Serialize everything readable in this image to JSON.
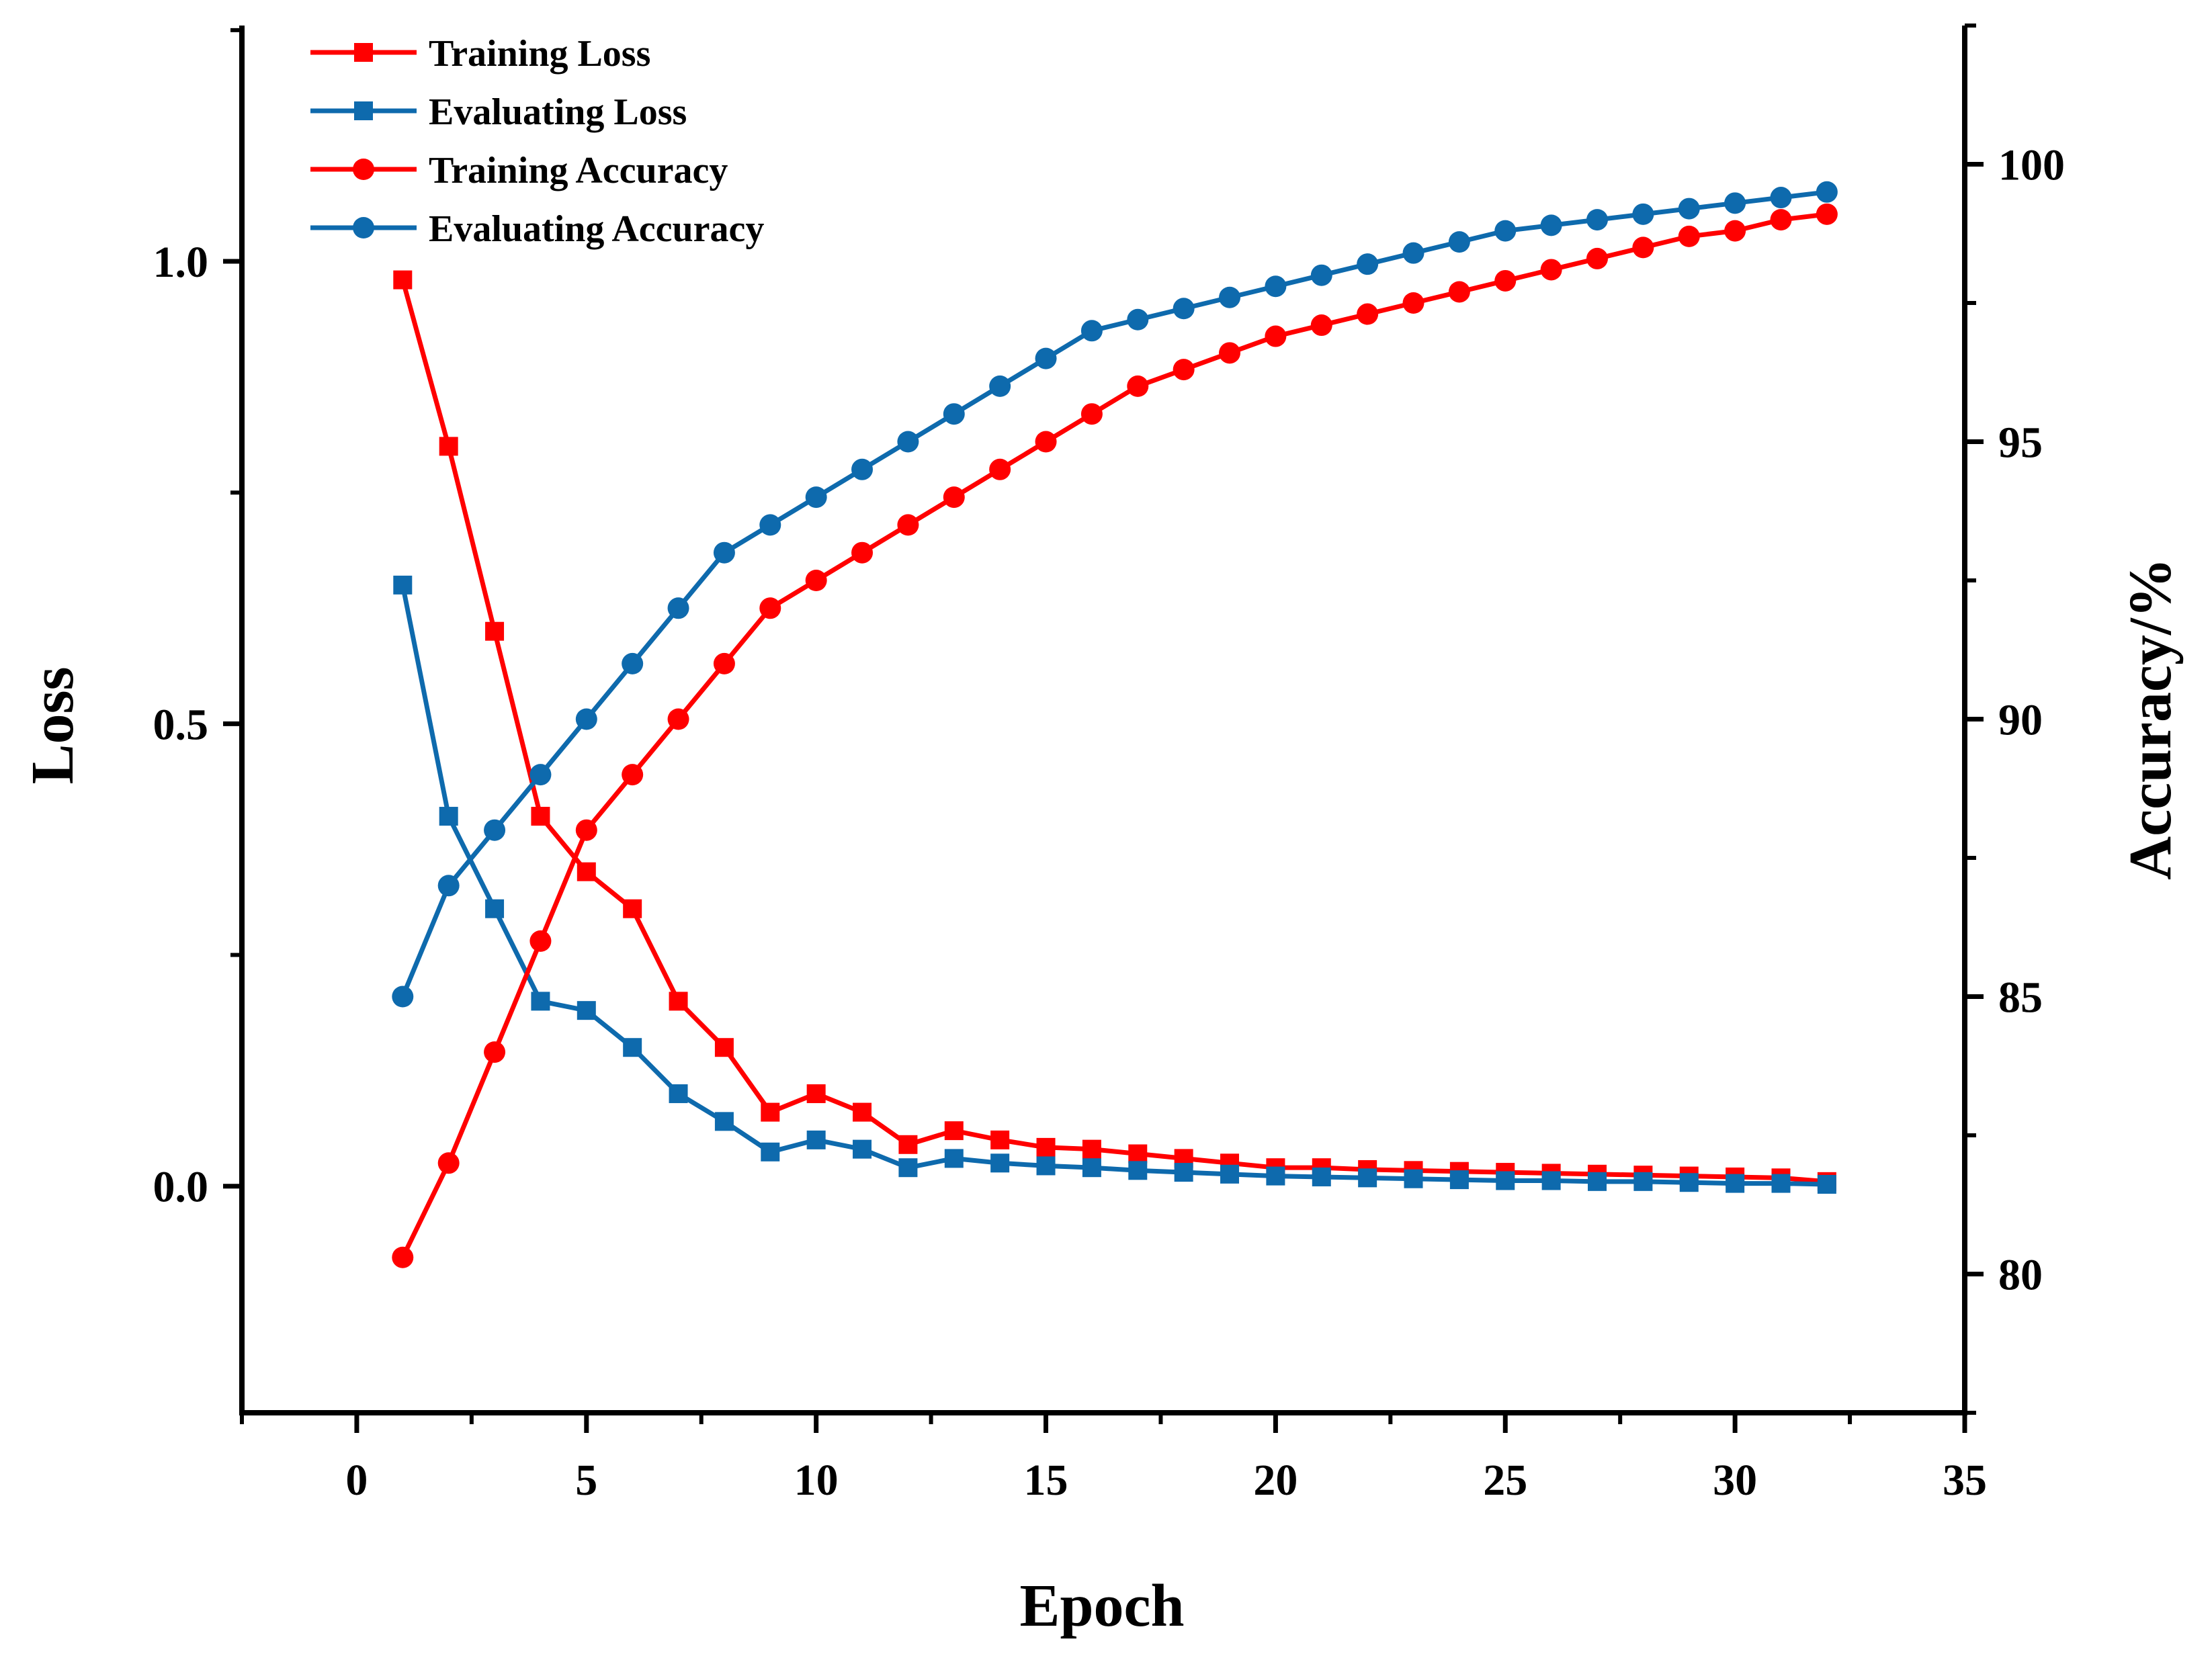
{
  "chart_data": {
    "type": "line",
    "xlabel": "Epoch",
    "ylabel_left": "Loss",
    "ylabel_right": "Accuracy/%",
    "x_ticks": [
      "0",
      "5",
      "10",
      "15",
      "20",
      "25",
      "30",
      "35"
    ],
    "y_left_ticks": [
      "0.0",
      "0.5",
      "1.0"
    ],
    "y_right_ticks": [
      "80",
      "85",
      "90",
      "95",
      "100"
    ],
    "xlim": [
      -2.5,
      35
    ],
    "ylim_left": [
      -0.245,
      1.255
    ],
    "ylim_right": [
      77.5,
      102.5
    ],
    "x": [
      1,
      2,
      3,
      4,
      5,
      6,
      7,
      8,
      9,
      10,
      11,
      12,
      13,
      14,
      15,
      16,
      17,
      18,
      19,
      20,
      21,
      22,
      23,
      24,
      25,
      26,
      27,
      28,
      29,
      30,
      31,
      32
    ],
    "colors": {
      "training": "#ff0000",
      "evaluating": "#0e6aad"
    },
    "series": [
      {
        "name": "Training Loss",
        "axis": "left",
        "marker": "square",
        "color": "#ff0000",
        "values": [
          0.98,
          0.8,
          0.6,
          0.4,
          0.34,
          0.3,
          0.2,
          0.15,
          0.08,
          0.1,
          0.08,
          0.045,
          0.06,
          0.05,
          0.042,
          0.04,
          0.035,
          0.03,
          0.025,
          0.02,
          0.02,
          0.018,
          0.017,
          0.016,
          0.015,
          0.014,
          0.013,
          0.012,
          0.011,
          0.01,
          0.009,
          0.005
        ]
      },
      {
        "name": "Evaluating Loss",
        "axis": "left",
        "marker": "square",
        "color": "#0e6aad",
        "values": [
          0.65,
          0.4,
          0.3,
          0.2,
          0.19,
          0.15,
          0.1,
          0.07,
          0.037,
          0.05,
          0.04,
          0.02,
          0.03,
          0.025,
          0.022,
          0.02,
          0.017,
          0.015,
          0.013,
          0.011,
          0.01,
          0.009,
          0.008,
          0.007,
          0.006,
          0.006,
          0.005,
          0.005,
          0.004,
          0.003,
          0.003,
          0.002
        ]
      },
      {
        "name": "Training Accuracy",
        "axis": "right",
        "marker": "circle",
        "color": "#ff0000",
        "values": [
          80.3,
          82.0,
          84.0,
          86.0,
          88.0,
          89.0,
          90.0,
          91.0,
          92.0,
          92.5,
          93.0,
          93.5,
          94.0,
          94.5,
          95.0,
          95.5,
          96.0,
          96.3,
          96.6,
          96.9,
          97.1,
          97.3,
          97.5,
          97.7,
          97.9,
          98.1,
          98.3,
          98.5,
          98.7,
          98.8,
          99.0,
          99.1
        ]
      },
      {
        "name": "Evaluating Accuracy",
        "axis": "right",
        "marker": "circle",
        "color": "#0e6aad",
        "values": [
          85.0,
          87.0,
          88.0,
          89.0,
          90.0,
          91.0,
          92.0,
          93.0,
          93.5,
          94.0,
          94.5,
          95.0,
          95.5,
          96.0,
          96.5,
          97.0,
          97.2,
          97.4,
          97.6,
          97.8,
          98.0,
          98.2,
          98.4,
          98.6,
          98.8,
          98.9,
          99.0,
          99.1,
          99.2,
          99.3,
          99.4,
          99.5
        ]
      }
    ],
    "legend": {
      "position": "top-left",
      "entries": [
        "Training Loss",
        "Evaluating Loss",
        "Training Accuracy",
        "Evaluating Accuracy"
      ]
    },
    "grid": false
  }
}
